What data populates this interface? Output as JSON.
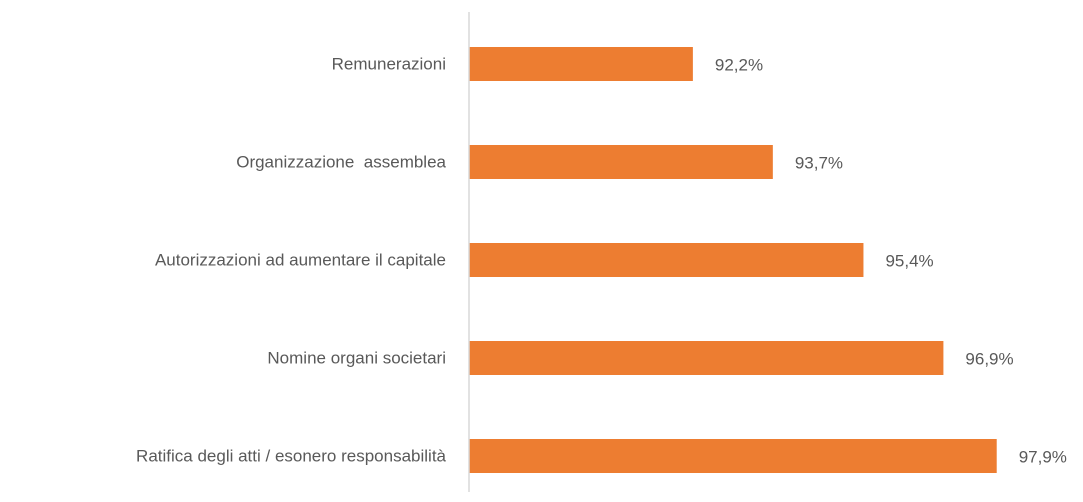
{
  "chart_data": {
    "type": "hbar",
    "categories": [
      "Remunerazioni",
      "Organizzazione  assemblea",
      "Autorizzazioni ad aumentare il capitale",
      "Nomine organi societari",
      "Ratifica degli atti / esonero responsabilità"
    ],
    "values": [
      92.2,
      93.7,
      95.4,
      96.9,
      97.9
    ],
    "value_labels": [
      "92,2%",
      "93,7%",
      "95,4%",
      "96,9%",
      "97,9%"
    ],
    "color": "#ed7d31",
    "xlim": [
      88,
      99.5
    ]
  }
}
